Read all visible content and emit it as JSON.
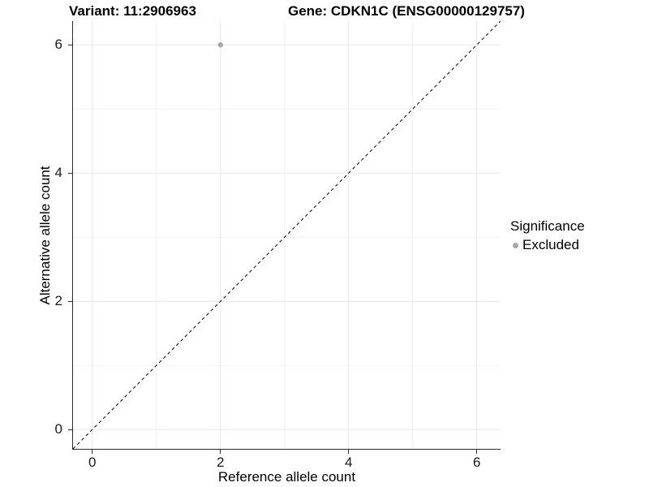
{
  "titles": {
    "variant": "Variant: 11:2906963",
    "gene": "Gene: CDKN1C (ENSG00000129757)"
  },
  "axes": {
    "x_label": "Reference allele count",
    "y_label": "Alternative allele count"
  },
  "legend": {
    "title": "Significance",
    "items": [
      {
        "label": "Excluded",
        "color": "#a8a8a8"
      }
    ]
  },
  "colors": {
    "grid_major": "#e7e7e7",
    "grid_minor": "#f2f2f2",
    "axis_line": "#2b2b2b",
    "reference_line": "#000000",
    "point": "#a8a8a8",
    "background": "#ffffff"
  },
  "chart_data": {
    "type": "scatter",
    "title": "Variant: 11:2906963    Gene: CDKN1C (ENSG00000129757)",
    "xlabel": "Reference allele count",
    "ylabel": "Alternative allele count",
    "xlim": [
      -0.3,
      6.37
    ],
    "ylim": [
      -0.3,
      6.37
    ],
    "major_ticks": [
      0,
      2,
      4,
      6
    ],
    "minor_ticks": [
      1,
      3,
      5
    ],
    "grid": true,
    "legend_position": "right",
    "series": [
      {
        "name": "Excluded",
        "color": "#a8a8a8",
        "points": [
          {
            "x": 2,
            "y": 6
          }
        ]
      }
    ],
    "reference_line": {
      "slope": 1,
      "intercept": 0,
      "style": "dashed",
      "color": "#000000"
    }
  }
}
